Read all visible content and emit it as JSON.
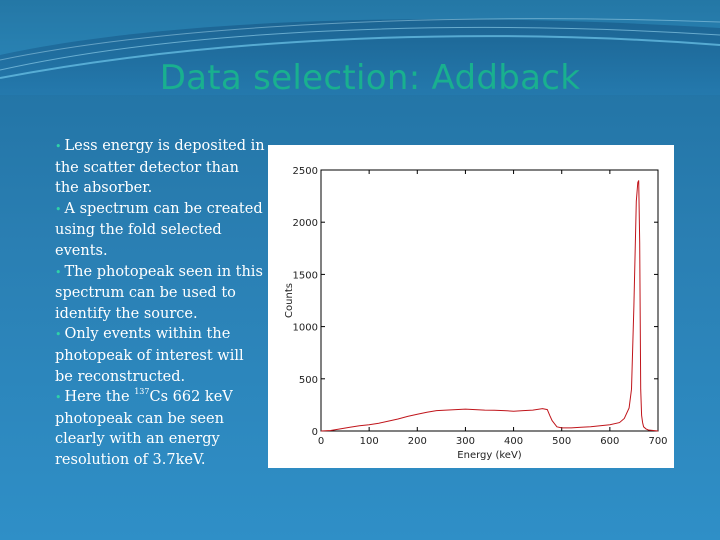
{
  "slide": {
    "title": "Data selection: Addback",
    "bullets": [
      {
        "text": "Less energy is deposited in the scatter detector than the absorber."
      },
      {
        "text": "A spectrum can be created using the fold selected events."
      },
      {
        "text": "The photopeak seen in this spectrum can be used to identify the source."
      },
      {
        "text": "Only events within the photopeak of interest will be reconstructed."
      },
      {
        "pre": "Here the ",
        "sup": "137",
        "post": "Cs 662 keV photopeak can be seen clearly with an energy resolution of 3.7keV."
      }
    ]
  },
  "colors": {
    "title": "#19b08f",
    "bullet_dot": "#2fd1a8",
    "series": "#c0151b"
  },
  "chart_data": {
    "type": "line",
    "title": "",
    "xlabel": "Energy (keV)",
    "ylabel": "Counts",
    "xlim": [
      0,
      700
    ],
    "ylim": [
      0,
      2500
    ],
    "xticks": [
      0,
      100,
      200,
      300,
      400,
      500,
      600,
      700
    ],
    "yticks": [
      0,
      500,
      1000,
      1500,
      2000,
      2500
    ],
    "grid": false,
    "legend": "none",
    "series": [
      {
        "color": "#c0151b",
        "x": [
          0,
          20,
          40,
          60,
          80,
          100,
          120,
          140,
          160,
          180,
          200,
          220,
          240,
          260,
          280,
          300,
          320,
          340,
          360,
          380,
          400,
          420,
          440,
          460,
          470,
          475,
          480,
          490,
          500,
          520,
          540,
          560,
          580,
          600,
          620,
          630,
          640,
          645,
          650,
          655,
          658,
          660,
          662,
          663,
          664,
          666,
          668,
          670,
          675,
          680,
          690,
          700
        ],
        "y": [
          0,
          5,
          20,
          35,
          50,
          60,
          75,
          95,
          115,
          140,
          160,
          180,
          195,
          200,
          205,
          210,
          205,
          200,
          198,
          195,
          190,
          195,
          200,
          215,
          205,
          150,
          100,
          40,
          30,
          30,
          35,
          40,
          50,
          60,
          80,
          120,
          220,
          400,
          1200,
          2200,
          2380,
          2400,
          1800,
          1100,
          400,
          150,
          80,
          40,
          20,
          10,
          5,
          0
        ]
      }
    ]
  }
}
